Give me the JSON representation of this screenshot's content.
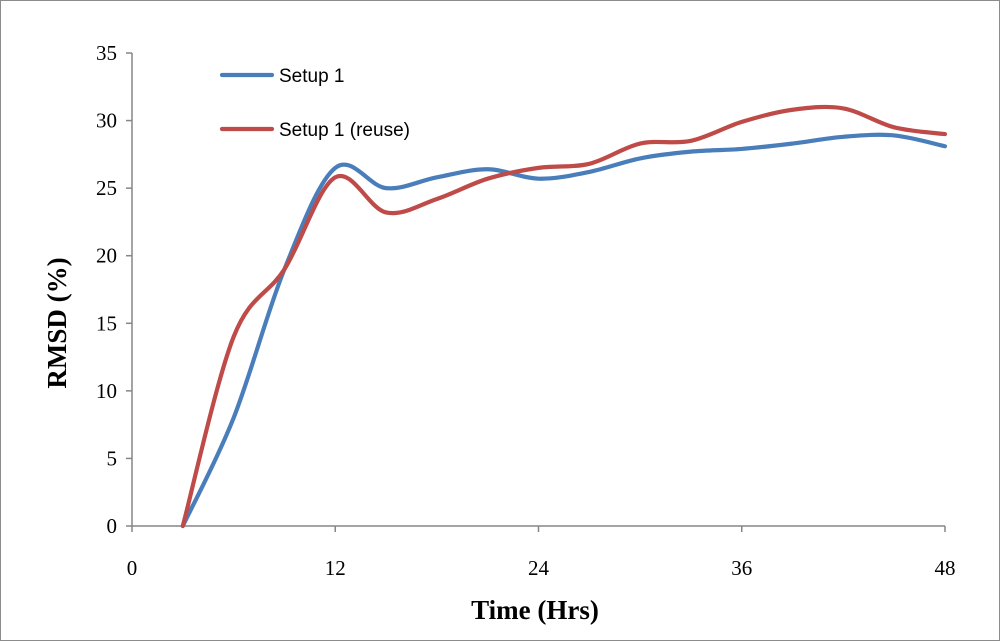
{
  "chart_data": {
    "type": "line",
    "xlabel": "Time (Hrs)",
    "ylabel": "RMSD (%)",
    "xlim": [
      0,
      48
    ],
    "ylim": [
      0,
      35
    ],
    "x_ticks": [
      0,
      12,
      24,
      36,
      48
    ],
    "y_ticks": [
      0,
      5,
      10,
      15,
      20,
      25,
      30,
      35
    ],
    "grid": false,
    "legend_position": "top-left",
    "series": [
      {
        "name": "Setup 1",
        "color": "#4a7ebb",
        "x": [
          3,
          6,
          9,
          12,
          15,
          18,
          21,
          24,
          27,
          30,
          33,
          36,
          39,
          42,
          45,
          48
        ],
        "y": [
          0,
          8,
          19,
          26.5,
          25,
          25.8,
          26.4,
          25.7,
          26.2,
          27.2,
          27.7,
          27.9,
          28.3,
          28.8,
          28.9,
          28.1
        ]
      },
      {
        "name": "Setup 1 (reuse)",
        "color": "#be4b48",
        "x": [
          3,
          6,
          9,
          12,
          15,
          18,
          21,
          24,
          27,
          30,
          33,
          36,
          39,
          42,
          45,
          48
        ],
        "y": [
          0,
          14,
          19,
          25.8,
          23.2,
          24.2,
          25.7,
          26.5,
          26.8,
          28.3,
          28.5,
          29.9,
          30.8,
          30.9,
          29.5,
          29.0
        ]
      }
    ]
  }
}
